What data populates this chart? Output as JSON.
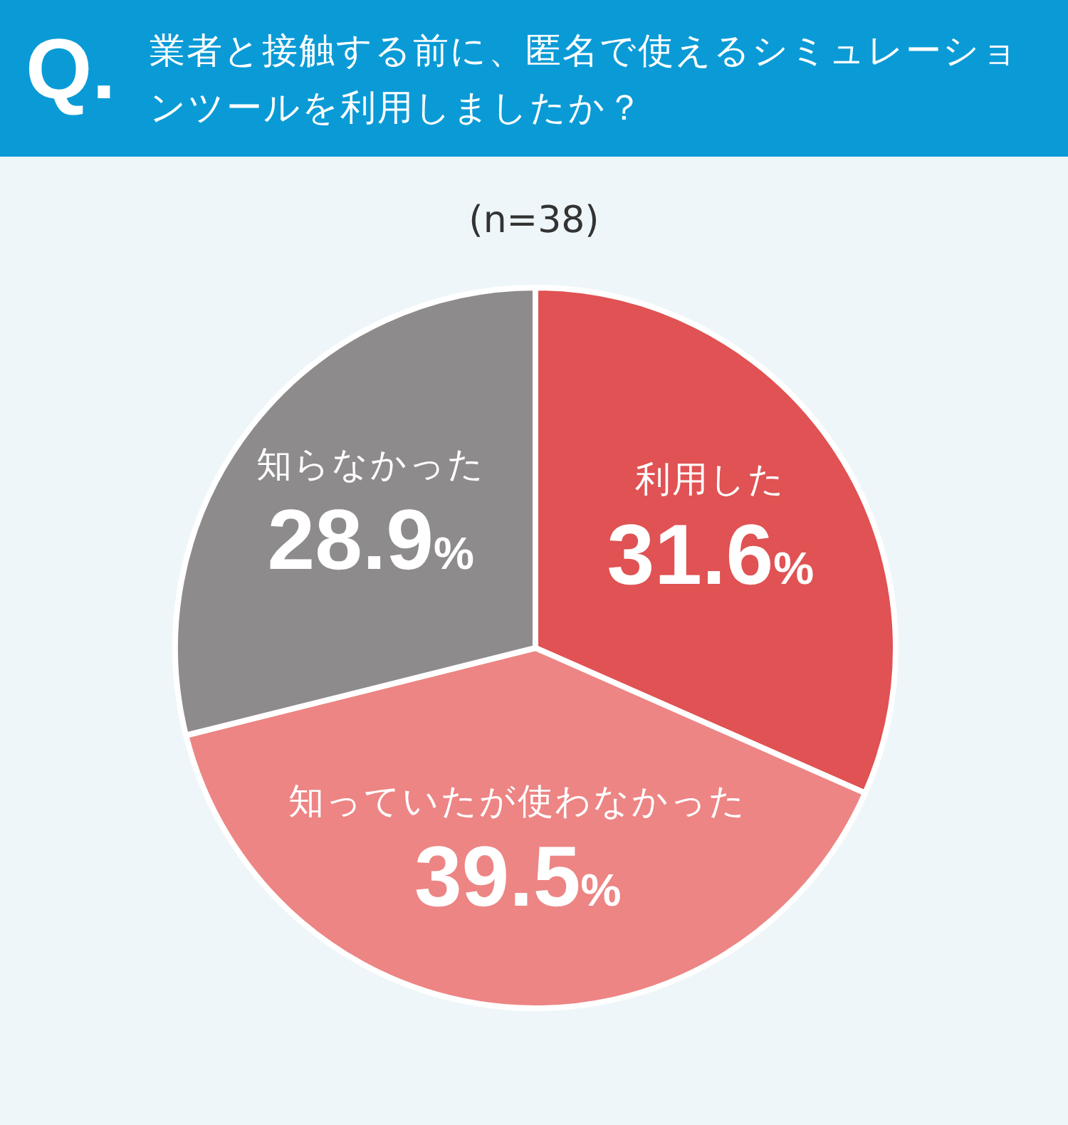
{
  "chart_data": {
    "type": "pie",
    "title": "業者と接触する前に、匿名で使えるシミュレーションツールを利用しましたか？",
    "subtitle": "(n=38)",
    "annotations": [
      "Q."
    ],
    "categories": [
      "利用した",
      "知っていたが使わなかった",
      "知らなかった"
    ],
    "values": [
      31.6,
      39.5,
      28.9
    ],
    "value_labels": [
      "31.6%",
      "39.5%",
      "28.9%"
    ],
    "colors": [
      "#e05253",
      "#ec8584",
      "#8e8b8c"
    ]
  }
}
